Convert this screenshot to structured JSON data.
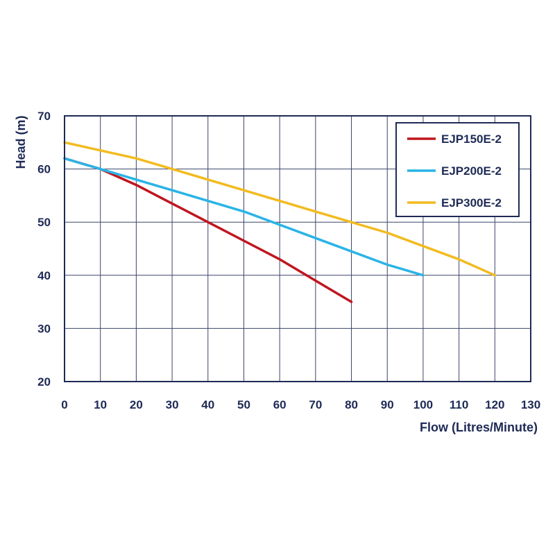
{
  "chart_data": {
    "type": "line",
    "title": "",
    "xlabel": "Flow (Litres/Minute)",
    "ylabel": "Head (m)",
    "xlim": [
      0,
      130
    ],
    "ylim": [
      20,
      70
    ],
    "xticks": [
      "0",
      "10",
      "20",
      "30",
      "40",
      "50",
      "60",
      "70",
      "80",
      "90",
      "100",
      "110",
      "120",
      "130"
    ],
    "yticks": [
      "20",
      "30",
      "40",
      "50",
      "60",
      "70"
    ],
    "grid": true,
    "legend_position": "top-right",
    "series": [
      {
        "name": "EJP150E-2",
        "color": "#c0161f",
        "x": [
          0,
          10,
          20,
          30,
          40,
          50,
          60,
          70,
          80
        ],
        "y": [
          62,
          60,
          57,
          53.5,
          50,
          46.5,
          43,
          39,
          35
        ]
      },
      {
        "name": "EJP200E-2",
        "color": "#2ab4e6",
        "x": [
          0,
          10,
          20,
          30,
          40,
          50,
          60,
          70,
          80,
          90,
          100
        ],
        "y": [
          62,
          60,
          58,
          56,
          54,
          52,
          49.5,
          47,
          44.5,
          42,
          40
        ]
      },
      {
        "name": "EJP300E-2",
        "color": "#f2bb1f",
        "x": [
          0,
          10,
          20,
          30,
          40,
          50,
          60,
          70,
          80,
          90,
          100,
          110,
          120
        ],
        "y": [
          65,
          63.5,
          62,
          60,
          58,
          56,
          54,
          52,
          50,
          48,
          45.5,
          43,
          40
        ]
      }
    ]
  }
}
